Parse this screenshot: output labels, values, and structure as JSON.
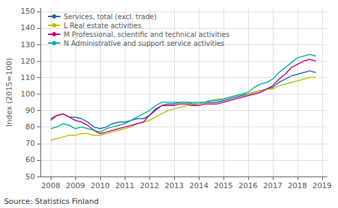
{
  "chart_data": {
    "type": "line",
    "ylabel": "Index (2015=100)",
    "source": "Source: Statistics Finland",
    "xlim": [
      2007.58,
      2019.2
    ],
    "ylim": [
      50,
      152
    ],
    "xticks": [
      2008,
      2009,
      2010,
      2011,
      2012,
      2013,
      2014,
      2015,
      2016,
      2017,
      2018,
      2019
    ],
    "yticks": [
      50,
      60,
      70,
      80,
      90,
      100,
      110,
      120,
      130,
      140,
      150
    ],
    "grid": true,
    "legend": "upper left",
    "x": [
      2008.0,
      2008.25,
      2008.5,
      2008.75,
      2009.0,
      2009.25,
      2009.5,
      2009.75,
      2010.0,
      2010.25,
      2010.5,
      2010.75,
      2011.0,
      2011.25,
      2011.5,
      2011.75,
      2012.0,
      2012.25,
      2012.5,
      2012.75,
      2013.0,
      2013.25,
      2013.5,
      2013.75,
      2014.0,
      2014.25,
      2014.5,
      2014.75,
      2015.0,
      2015.25,
      2015.5,
      2015.75,
      2016.0,
      2016.25,
      2016.5,
      2016.75,
      2017.0,
      2017.25,
      2017.5,
      2017.75,
      2018.0,
      2018.25,
      2018.5,
      2018.75
    ],
    "series": [
      {
        "name": "Services, total (excl. trade)",
        "color": "#2060a0",
        "values": [
          84,
          87,
          88,
          86,
          86,
          85,
          83,
          80,
          79,
          80,
          82,
          83,
          83,
          84,
          85,
          85,
          87,
          90,
          93,
          94,
          94,
          95,
          95,
          94,
          94,
          95,
          95,
          95,
          96,
          97,
          98,
          99,
          100,
          101,
          102,
          103,
          104,
          107,
          109,
          111,
          112,
          113,
          114,
          113
        ]
      },
      {
        "name": "L Real estate activities",
        "color": "#b5be00",
        "values": [
          72,
          73,
          74,
          75,
          75,
          76,
          76,
          75,
          75,
          76,
          77,
          78,
          79,
          80,
          82,
          83,
          84,
          86,
          88,
          90,
          91,
          92,
          93,
          93,
          94,
          95,
          96,
          97,
          97,
          98,
          99,
          100,
          100,
          101,
          102,
          103,
          103,
          105,
          106,
          107,
          108,
          109,
          110,
          110
        ]
      },
      {
        "name": "M Professional, scientific and technical activities",
        "color": "#c0007a",
        "values": [
          85,
          87,
          88,
          86,
          84,
          83,
          81,
          78,
          76,
          77,
          78,
          79,
          80,
          81,
          82,
          83,
          87,
          91,
          93,
          93,
          93,
          94,
          94,
          93,
          93,
          94,
          94,
          94,
          95,
          96,
          97,
          98,
          99,
          100,
          101,
          103,
          105,
          109,
          112,
          116,
          118,
          120,
          121,
          120
        ]
      },
      {
        "name": "N Administrative and support service activities",
        "color": "#00b0a0",
        "values": [
          79,
          80,
          82,
          81,
          79,
          80,
          79,
          78,
          77,
          79,
          80,
          81,
          82,
          84,
          86,
          88,
          90,
          93,
          95,
          95,
          95,
          95,
          95,
          95,
          95,
          95,
          96,
          96,
          97,
          98,
          99,
          100,
          101,
          104,
          106,
          107,
          109,
          113,
          116,
          119,
          122,
          123,
          124,
          123
        ]
      }
    ]
  }
}
